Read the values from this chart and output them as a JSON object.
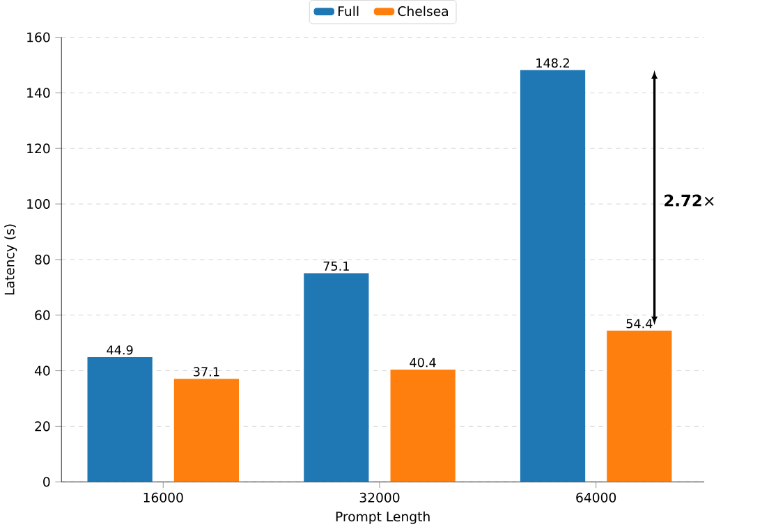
{
  "chart_data": {
    "type": "bar",
    "xlabel": "Prompt Length",
    "ylabel": "Latency (s)",
    "categories": [
      "16000",
      "32000",
      "64000"
    ],
    "series": [
      {
        "name": "Full",
        "color": "#1f77b4",
        "values": [
          44.9,
          75.1,
          148.2
        ]
      },
      {
        "name": "Chelsea",
        "color": "#ff7f0e",
        "values": [
          37.1,
          40.4,
          54.4
        ]
      }
    ],
    "ylim": [
      0,
      160
    ],
    "yticks": [
      0,
      20,
      40,
      60,
      80,
      100,
      120,
      140,
      160
    ],
    "grid": "y",
    "legend": "top",
    "data_labels": true,
    "annotations": [
      "**2.72**×"
    ]
  }
}
